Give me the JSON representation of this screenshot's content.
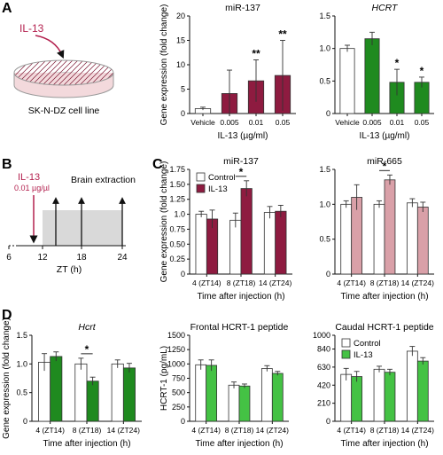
{
  "figure": {
    "panel_labels": [
      "A",
      "B",
      "C",
      "D"
    ],
    "schematic_a": {
      "treatment": "IL-13",
      "cell_line": "SK-N-DZ cell line"
    },
    "schematic_b": {
      "treatment": "IL-13",
      "dose": "0.01 µg/µl",
      "event": "Brain extraction",
      "xlabel": "ZT (h)",
      "ticks": [
        "6",
        "12",
        "18",
        "24"
      ]
    }
  },
  "colors": {
    "mir137": "#8e1b40",
    "mir665": "#d9a0a8",
    "hcrt": "#1f8a1f",
    "hcrt_peptide": "#44c244",
    "control": "#ffffff",
    "shade": "#d9d9d9",
    "arrow": "#b3204e"
  },
  "chart_data": [
    {
      "id": "A1",
      "type": "bar",
      "title": "miR-137",
      "xlabel": "IL-13 (µg/ml)",
      "ylabel": "Gene expression (fold change)",
      "categories": [
        "Vehicle",
        "0.005",
        "0.01",
        "0.05"
      ],
      "values": [
        1.0,
        4.1,
        6.7,
        7.8
      ],
      "errors": [
        0.3,
        4.8,
        4.3,
        7.2
      ],
      "significance": [
        "",
        "",
        "**",
        "**"
      ],
      "ylim": [
        0,
        20
      ],
      "yticks": [
        "0",
        "5",
        "10",
        "15",
        "20"
      ]
    },
    {
      "id": "A2",
      "type": "bar",
      "title": "HCRT",
      "xlabel": "IL-13 (µg/ml)",
      "categories": [
        "Vehicle",
        "0.005",
        "0.01",
        "0.05"
      ],
      "values": [
        1.0,
        1.15,
        0.48,
        0.48
      ],
      "errors": [
        0.05,
        0.1,
        0.2,
        0.08
      ],
      "significance": [
        "",
        "",
        "*",
        "*"
      ],
      "ylim": [
        0,
        1.5
      ],
      "yticks": [
        "0",
        "0.5",
        "1.0",
        "1.5"
      ]
    },
    {
      "id": "C1",
      "type": "bar",
      "title": "miR-137",
      "xlabel": "Time after injection (h)",
      "ylabel": "Gene expression (fold change)",
      "categories": [
        "4 (ZT14)",
        "8 (ZT18)",
        "14 (ZT24)"
      ],
      "series": [
        {
          "name": "Control",
          "values": [
            1.0,
            0.9,
            1.03
          ],
          "errors": [
            0.05,
            0.12,
            0.1
          ]
        },
        {
          "name": "IL-13",
          "values": [
            0.92,
            1.43,
            1.05
          ],
          "errors": [
            0.15,
            0.13,
            0.1
          ]
        }
      ],
      "significance": [
        "",
        "*",
        ""
      ],
      "ylim": [
        0,
        1.75
      ],
      "yticks": [
        "0",
        "0.25",
        "0.50",
        "0.75",
        "1.0",
        "1.25",
        "1.50",
        "1.75"
      ]
    },
    {
      "id": "C2",
      "type": "bar",
      "title": "miR-665",
      "xlabel": "Time after injection (h)",
      "categories": [
        "4 (ZT14)",
        "8 (ZT18)",
        "14 (ZT24)"
      ],
      "series": [
        {
          "name": "Control",
          "values": [
            1.0,
            1.0,
            1.02
          ],
          "errors": [
            0.05,
            0.05,
            0.06
          ]
        },
        {
          "name": "IL-13",
          "values": [
            1.1,
            1.35,
            0.96
          ],
          "errors": [
            0.18,
            0.07,
            0.07
          ]
        }
      ],
      "significance": [
        "",
        "*",
        ""
      ],
      "ylim": [
        0,
        1.5
      ],
      "yticks": [
        "0",
        "0.5",
        "1.0",
        "1.5"
      ]
    },
    {
      "id": "D1",
      "type": "bar",
      "title": "Hcrt",
      "xlabel": "Time after injection (h)",
      "ylabel": "Gene expression (fold change)",
      "categories": [
        "4 (ZT14)",
        "8 (ZT18)",
        "14 (ZT24)"
      ],
      "series": [
        {
          "name": "Control",
          "values": [
            1.03,
            1.0,
            1.0
          ],
          "errors": [
            0.15,
            0.1,
            0.07
          ]
        },
        {
          "name": "IL-13",
          "values": [
            1.13,
            0.7,
            0.93
          ],
          "errors": [
            0.08,
            0.07,
            0.08
          ]
        }
      ],
      "significance": [
        "",
        "*",
        ""
      ],
      "ylim": [
        0,
        1.5
      ],
      "yticks": [
        "0",
        "0.5",
        "1.0",
        "1.5"
      ]
    },
    {
      "id": "D2",
      "type": "bar",
      "title": "Frontal HCRT-1 peptide",
      "xlabel": "Time after injection (h)",
      "ylabel": "HCRT-1 (pg/mL)",
      "categories": [
        "4 (ZT14)",
        "8 (ZT18)",
        "14 (ZT24)"
      ],
      "series": [
        {
          "name": "Control",
          "values": [
            985,
            630,
            920
          ],
          "errors": [
            85,
            55,
            50
          ]
        },
        {
          "name": "IL-13",
          "values": [
            975,
            615,
            835
          ],
          "errors": [
            95,
            35,
            35
          ]
        }
      ],
      "significance": [
        "",
        "",
        ""
      ],
      "ylim": [
        0,
        1500
      ],
      "yticks": [
        "0",
        "250",
        "500",
        "750",
        "1000",
        "1250",
        "1500"
      ]
    },
    {
      "id": "D3",
      "type": "bar",
      "title": "Caudal HCRT-1 peptide",
      "xlabel": "Time after injection (h)",
      "categories": [
        "4 (ZT14)",
        "8 (ZT18)",
        "14 (ZT24)"
      ],
      "series": [
        {
          "name": "Control",
          "values": [
            545,
            605,
            815
          ],
          "errors": [
            70,
            35,
            55
          ]
        },
        {
          "name": "IL-13",
          "values": [
            520,
            570,
            700
          ],
          "errors": [
            60,
            35,
            40
          ]
        }
      ],
      "significance": [
        "",
        "",
        ""
      ],
      "ylim": [
        0,
        1000
      ],
      "yticks": [
        "0",
        "210",
        "420",
        "630",
        "840",
        "1000"
      ]
    }
  ]
}
